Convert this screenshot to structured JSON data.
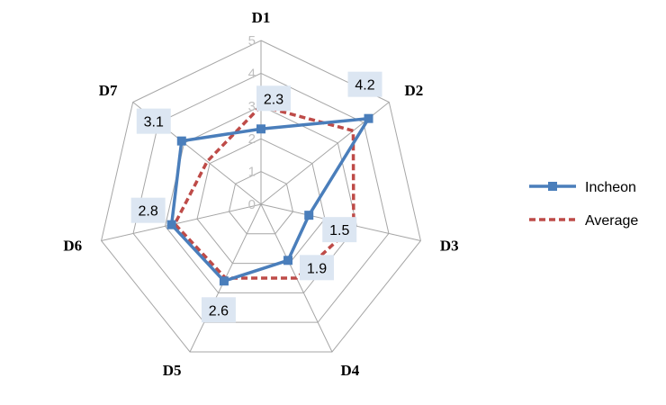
{
  "chart_data": {
    "type": "radar",
    "categories": [
      "D1",
      "D2",
      "D3",
      "D4",
      "D5",
      "D6",
      "D7"
    ],
    "range": [
      0,
      5
    ],
    "ticks": [
      "0",
      "1",
      "2",
      "3",
      "4",
      "5"
    ],
    "series": [
      {
        "name": "Incheon",
        "values": [
          2.3,
          4.2,
          1.5,
          1.9,
          2.6,
          2.8,
          3.1
        ],
        "data_labels": [
          "2.3",
          "4.2",
          "1.5",
          "1.9",
          "2.6",
          "2.8",
          "3.1"
        ],
        "color": "#4a7ebb",
        "style": "solid-square-markers"
      },
      {
        "name": "Average",
        "values": [
          3.0,
          3.6,
          2.9,
          2.5,
          2.5,
          2.7,
          2.1
        ],
        "color": "#be4b48",
        "style": "dashed"
      }
    ],
    "legend_position": "right",
    "grid": true
  }
}
